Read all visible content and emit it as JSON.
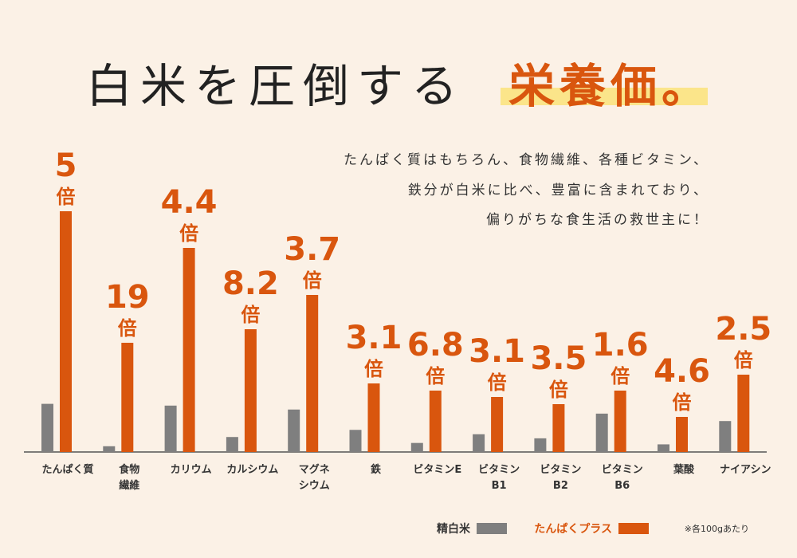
{
  "chart_data": {
    "type": "bar",
    "title": "白米を圧倒する",
    "title_highlight": "栄養価。",
    "description": [
      "たんぱく質はもちろん、食物繊維、各種ビタミン、",
      "鉄分が白米に比べ、豊富に含まれており、",
      "偏りがちな食生活の救世主に！"
    ],
    "categories": [
      [
        "たんぱく質"
      ],
      [
        "食物",
        "繊維"
      ],
      [
        "カリウム"
      ],
      [
        "カルシウム"
      ],
      [
        "マグネ",
        "シウム"
      ],
      [
        "鉄"
      ],
      [
        "ビタミンE"
      ],
      [
        "ビタミン",
        "B1"
      ],
      [
        "ビタミン",
        "B2"
      ],
      [
        "ビタミン",
        "B6"
      ],
      [
        "葉酸"
      ],
      [
        "ナイアシン"
      ]
    ],
    "unit": "倍",
    "series": [
      {
        "name": "精白米",
        "color": "#7f7f7f"
      },
      {
        "name": "たんぱくプラス",
        "color": "#d9560e",
        "values": [
          5,
          19,
          4.4,
          8.2,
          3.7,
          3.1,
          6.8,
          3.1,
          3.5,
          1.6,
          4.6,
          2.5
        ]
      }
    ],
    "note": "※各100gあたり"
  }
}
